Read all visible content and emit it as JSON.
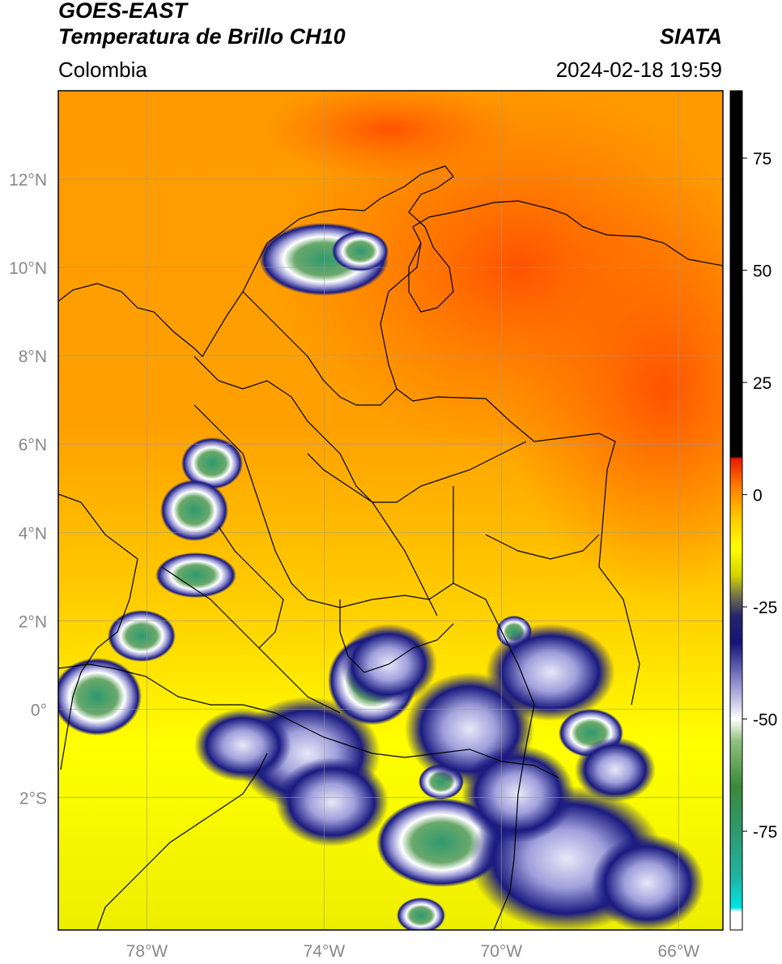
{
  "header": {
    "satellite": "GOES-EAST",
    "product": "Temperatura de Brillo CH10",
    "source": "SIATA",
    "region": "Colombia",
    "timestamp": "2024-02-18 19:59"
  },
  "map": {
    "extent": {
      "lon_min": -80,
      "lon_max": -65,
      "lat_min": -5,
      "lat_max": 14
    },
    "lat_ticks": [
      {
        "value": 12,
        "label": "12°N"
      },
      {
        "value": 10,
        "label": "10°N"
      },
      {
        "value": 8,
        "label": "8°N"
      },
      {
        "value": 6,
        "label": "6°N"
      },
      {
        "value": 4,
        "label": "4°N"
      },
      {
        "value": 2,
        "label": "2°N"
      },
      {
        "value": 0,
        "label": "0°"
      },
      {
        "value": -2,
        "label": "2°S"
      }
    ],
    "lon_ticks": [
      {
        "value": -78,
        "label": "78°W"
      },
      {
        "value": -74,
        "label": "74°W"
      },
      {
        "value": -70,
        "label": "70°W"
      },
      {
        "value": -66,
        "label": "66°W"
      }
    ],
    "colorbar": {
      "min": -97,
      "max": 90,
      "ticks": [
        {
          "value": 75,
          "label": "75"
        },
        {
          "value": 50,
          "label": "50"
        },
        {
          "value": 25,
          "label": "25"
        },
        {
          "value": 0,
          "label": "0"
        },
        {
          "value": -25,
          "label": "-25"
        },
        {
          "value": -50,
          "label": "-50"
        },
        {
          "value": -75,
          "label": "-75"
        }
      ],
      "stops": [
        {
          "value": -97,
          "color": "#ffffff"
        },
        {
          "value": -93,
          "color": "#ffffff"
        },
        {
          "value": -92,
          "color": "#00e5e5"
        },
        {
          "value": -85,
          "color": "#1fb3a0"
        },
        {
          "value": -75,
          "color": "#2e9a6e"
        },
        {
          "value": -65,
          "color": "#3a8a3a"
        },
        {
          "value": -55,
          "color": "#8fbf7f"
        },
        {
          "value": -50,
          "color": "#ffffff"
        },
        {
          "value": -42,
          "color": "#8f8fd0"
        },
        {
          "value": -33,
          "color": "#141478"
        },
        {
          "value": -27,
          "color": "#26266e"
        },
        {
          "value": -23,
          "color": "#6a6a50"
        },
        {
          "value": -18,
          "color": "#d4d400"
        },
        {
          "value": -12,
          "color": "#ffff00"
        },
        {
          "value": -5,
          "color": "#ffc800"
        },
        {
          "value": 2,
          "color": "#ff7a00"
        },
        {
          "value": 8,
          "color": "#e81a00"
        },
        {
          "value": 8.5,
          "color": "#000000"
        },
        {
          "value": 90,
          "color": "#000000"
        }
      ]
    }
  }
}
